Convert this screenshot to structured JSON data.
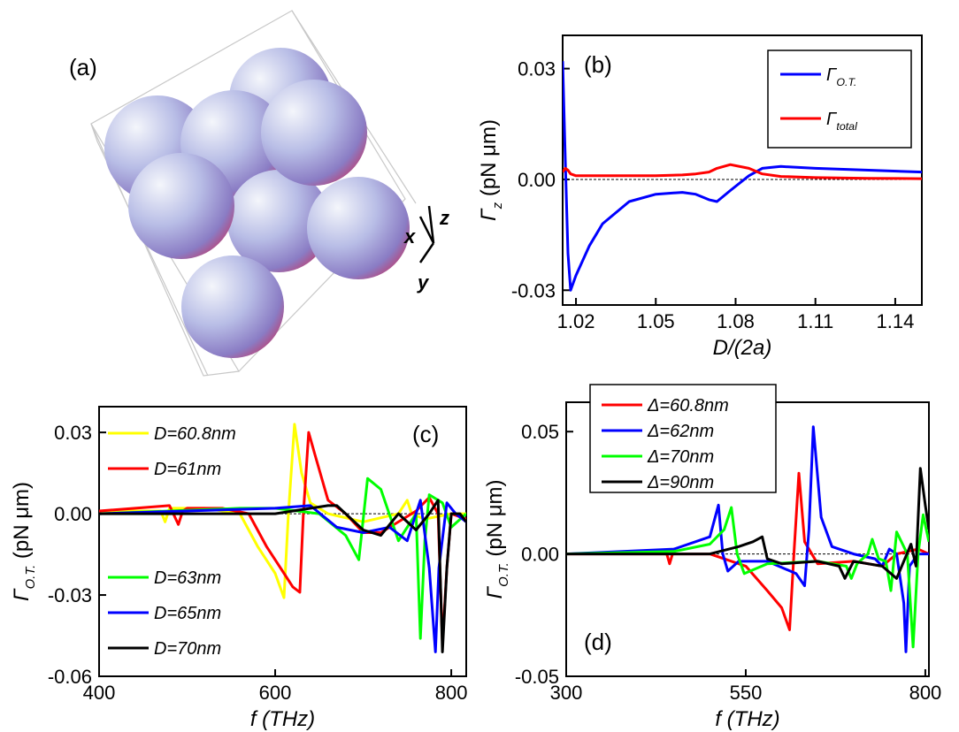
{
  "panel_a": {
    "label": "(a)",
    "axis_labels": [
      "x",
      "y",
      "z"
    ]
  },
  "chart_data": [
    {
      "type": "line",
      "label": "(b)",
      "x_label": "D/(2a)",
      "y_label": "Γz (pN μm)",
      "xlim": [
        1.015,
        1.15
      ],
      "ylim": [
        -0.034,
        0.039
      ],
      "xticks": [
        1.02,
        1.05,
        1.08,
        1.11,
        1.14
      ],
      "yticks": [
        -0.03,
        {
          "value": 0,
          "label": "0.00"
        },
        0.03
      ],
      "reference_line": 0,
      "series": [
        {
          "name": "ΓO.T.",
          "color": "#0000ff",
          "x": [
            1.015,
            1.016,
            1.017,
            1.018,
            1.02,
            1.025,
            1.03,
            1.04,
            1.05,
            1.06,
            1.065,
            1.07,
            1.073,
            1.078,
            1.085,
            1.09,
            1.097,
            1.11,
            1.13,
            1.15
          ],
          "values": [
            0.032,
            0.005,
            -0.02,
            -0.03,
            -0.026,
            -0.018,
            -0.012,
            -0.006,
            -0.004,
            -0.0035,
            -0.004,
            -0.0055,
            -0.006,
            -0.003,
            0.001,
            0.003,
            0.0035,
            0.003,
            0.0025,
            0.002
          ]
        },
        {
          "name": "Γtotal",
          "color": "#ff0000",
          "x": [
            1.015,
            1.016,
            1.017,
            1.018,
            1.02,
            1.025,
            1.03,
            1.04,
            1.05,
            1.06,
            1.065,
            1.07,
            1.073,
            1.078,
            1.085,
            1.09,
            1.097,
            1.11,
            1.13,
            1.15
          ],
          "values": [
            0.002,
            0.003,
            0.0025,
            0.0015,
            0.001,
            0.001,
            0.001,
            0.001,
            0.001,
            0.0012,
            0.0015,
            0.002,
            0.003,
            0.004,
            0.003,
            0.0015,
            0.0008,
            0.0005,
            0.0003,
            0.0002
          ]
        }
      ]
    },
    {
      "type": "line",
      "label": "(c)",
      "x_label": "f (THz)",
      "y_label": "ΓO.T. (pN μm)",
      "xlim": [
        400,
        817
      ],
      "ylim": [
        -0.06,
        0.0395
      ],
      "xticks": [
        400,
        600,
        800
      ],
      "yticks": [
        -0.06,
        -0.03,
        {
          "value": 0,
          "label": "0.00"
        },
        0.03
      ],
      "reference_line": 0,
      "series": [
        {
          "name": "D=60.8nm",
          "color": "#ffff00",
          "x": [
            400,
            470,
            475,
            480,
            520,
            560,
            580,
            600,
            610,
            615,
            622,
            630,
            640,
            660,
            700,
            740,
            750,
            755,
            770,
            800,
            817
          ],
          "values": [
            0.001,
            0.001,
            -0.003,
            0.002,
            0.002,
            0,
            -0.012,
            -0.022,
            -0.031,
            0,
            0.033,
            0.015,
            0.004,
            0,
            -0.003,
            0,
            0.005,
            0,
            -0.002,
            0,
            0
          ]
        },
        {
          "name": "D=61nm",
          "color": "#ff0000",
          "x": [
            400,
            480,
            490,
            495,
            500,
            540,
            570,
            590,
            610,
            620,
            628,
            632,
            638,
            645,
            660,
            680,
            700,
            720,
            760,
            775,
            785,
            790,
            795,
            800,
            817
          ],
          "values": [
            0.001,
            0.003,
            -0.004,
            0.001,
            0.002,
            0.002,
            0,
            -0.012,
            -0.022,
            -0.027,
            -0.029,
            0,
            0.03,
            0.022,
            0.005,
            0,
            -0.007,
            -0.007,
            0.001,
            0.006,
            0,
            -0.048,
            -0.02,
            0,
            -0.002
          ]
        },
        {
          "name": "D=63nm",
          "color": "#00ff00",
          "x": [
            400,
            560,
            580,
            600,
            650,
            680,
            695,
            705,
            720,
            740,
            760,
            765,
            770,
            775,
            790,
            800,
            817
          ],
          "values": [
            0,
            0.002,
            0.002,
            0.002,
            0,
            -0.008,
            -0.017,
            0.013,
            0.009,
            -0.01,
            0,
            -0.046,
            -0.01,
            0.007,
            0.004,
            -0.005,
            0
          ]
        },
        {
          "name": "D=65nm",
          "color": "#0000ff",
          "x": [
            400,
            600,
            640,
            670,
            700,
            730,
            750,
            765,
            775,
            782,
            786,
            795,
            805,
            817
          ],
          "values": [
            0,
            0.002,
            0.003,
            -0.005,
            -0.007,
            -0.005,
            -0.01,
            0.005,
            -0.02,
            -0.051,
            -0.02,
            0.004,
            0,
            -0.003
          ]
        },
        {
          "name": "D=70nm",
          "color": "#000000",
          "x": [
            400,
            600,
            660,
            670,
            680,
            700,
            720,
            740,
            760,
            775,
            785,
            790,
            795,
            800,
            810,
            817
          ],
          "values": [
            0,
            0,
            0.003,
            0.003,
            0,
            -0.006,
            -0.008,
            0,
            -0.006,
            0,
            0.005,
            -0.051,
            -0.02,
            0,
            0,
            -0.003
          ]
        }
      ]
    },
    {
      "type": "line",
      "label": "(d)",
      "x_label": "f (THz)",
      "y_label": "ΓO.T. (pN μm)",
      "xlim": [
        300,
        805
      ],
      "ylim": [
        -0.05,
        0.062
      ],
      "xticks": [
        300,
        550,
        800
      ],
      "yticks": [
        -0.05,
        {
          "value": 0,
          "label": "0.00"
        },
        0.05
      ],
      "reference_line": 0,
      "series": [
        {
          "name": "Δ=60.8nm",
          "color": "#ff0000",
          "x": [
            300,
            440,
            444,
            448,
            500,
            550,
            580,
            600,
            611,
            617,
            624,
            632,
            650,
            700,
            740,
            760,
            790,
            805
          ],
          "values": [
            0,
            0,
            -0.004,
            0,
            0,
            -0.005,
            -0.015,
            -0.022,
            -0.031,
            0,
            0.033,
            0.005,
            -0.004,
            -0.003,
            -0.005,
            0,
            0.002,
            0
          ]
        },
        {
          "name": "Δ=62nm",
          "color": "#0000ff",
          "x": [
            300,
            450,
            500,
            512,
            518,
            525,
            540,
            580,
            620,
            632,
            638,
            644,
            655,
            670,
            700,
            730,
            740,
            750,
            760,
            770,
            773,
            778,
            790,
            800,
            805
          ],
          "values": [
            0,
            0.002,
            0.007,
            0.02,
            0,
            -0.007,
            -0.003,
            -0.003,
            -0.008,
            -0.013,
            0.01,
            0.052,
            0.015,
            0.003,
            0,
            -0.002,
            -0.005,
            0.002,
            0,
            -0.02,
            -0.04,
            -0.005,
            0,
            0,
            0
          ]
        },
        {
          "name": "Δ=70nm",
          "color": "#00ff00",
          "x": [
            300,
            450,
            500,
            520,
            530,
            538,
            548,
            580,
            650,
            690,
            697,
            705,
            720,
            726,
            735,
            745,
            752,
            760,
            775,
            783,
            790,
            797,
            805
          ],
          "values": [
            0,
            0.001,
            0.004,
            0.01,
            0.019,
            0,
            -0.008,
            -0.004,
            -0.003,
            -0.005,
            -0.01,
            -0.004,
            0,
            0.006,
            -0.002,
            -0.003,
            -0.015,
            0.009,
            0,
            -0.038,
            0,
            0.016,
            0.005
          ]
        },
        {
          "name": "Δ=90nm",
          "color": "#000000",
          "x": [
            300,
            500,
            540,
            560,
            573,
            580,
            600,
            650,
            680,
            688,
            700,
            720,
            740,
            760,
            770,
            780,
            787,
            793,
            800,
            805
          ],
          "values": [
            0,
            0,
            0.003,
            0.005,
            0.007,
            -0.002,
            -0.004,
            -0.003,
            -0.005,
            -0.01,
            -0.003,
            -0.004,
            -0.005,
            -0.01,
            -0.003,
            0.004,
            -0.005,
            0.035,
            0.02,
            0.01
          ]
        }
      ]
    }
  ]
}
